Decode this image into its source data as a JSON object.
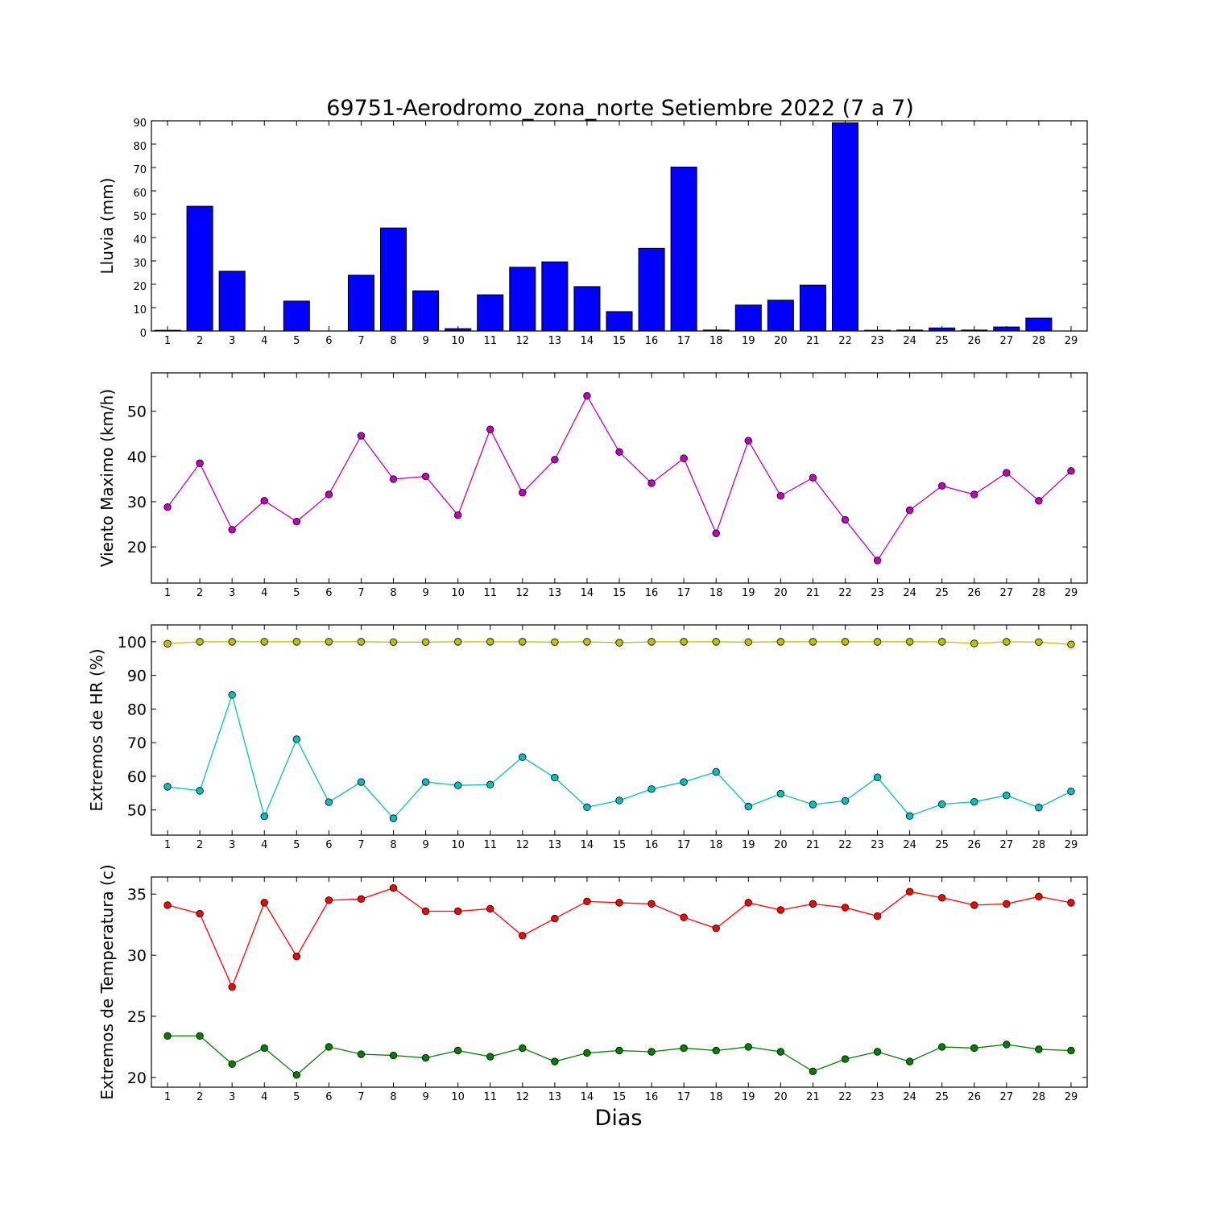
{
  "title": "69751-Aerodromo_zona_norte Setiembre 2022  (7 a 7)",
  "xlabel": "Dias",
  "colors": {
    "bar": "#0000ff",
    "wind": "#bf00bf",
    "hr_max": "#bfbf00",
    "hr_min": "#00bfbf",
    "t_max": "#ff0000",
    "t_min": "#008000"
  },
  "chart_data": [
    {
      "type": "bar",
      "ylabel": "Lluvia (mm)",
      "x": [
        1,
        2,
        3,
        4,
        5,
        6,
        7,
        8,
        9,
        10,
        11,
        12,
        13,
        14,
        15,
        16,
        17,
        18,
        19,
        20,
        21,
        22,
        23,
        24,
        25,
        26,
        27,
        28,
        29
      ],
      "xlim": [
        0.5,
        29.5
      ],
      "ylim": [
        0,
        90
      ],
      "yticks": [
        0,
        10,
        20,
        30,
        40,
        50,
        60,
        70,
        80,
        90
      ],
      "series": [
        {
          "values": [
            0.3,
            53.4,
            25.6,
            0,
            12.8,
            0,
            23.9,
            44.1,
            17.2,
            1,
            15.5,
            27.3,
            29.6,
            19,
            8.3,
            35.4,
            70.2,
            0.4,
            11.1,
            13.2,
            19.6,
            89.1,
            0.3,
            0.4,
            1.3,
            0.4,
            1.7,
            5.5,
            0
          ]
        }
      ]
    },
    {
      "type": "line",
      "ylabel": "Viento Maximo (km/h)",
      "x": [
        1,
        2,
        3,
        4,
        5,
        6,
        7,
        8,
        9,
        10,
        11,
        12,
        13,
        14,
        15,
        16,
        17,
        18,
        19,
        20,
        21,
        22,
        23,
        24,
        25,
        26,
        27,
        28,
        29
      ],
      "xlim": [
        0.5,
        29.5
      ],
      "ylim": [
        12,
        58.5
      ],
      "yticks": [
        20,
        30,
        40,
        50
      ],
      "series": [
        {
          "color_key": "wind",
          "values": [
            28.8,
            38.5,
            23.8,
            30.2,
            25.6,
            31.6,
            44.6,
            35,
            35.6,
            27,
            46,
            32,
            39.3,
            53.4,
            41,
            34.1,
            39.6,
            23,
            43.5,
            31.3,
            35.3,
            26,
            17,
            28.1,
            33.5,
            31.6,
            36.4,
            30.2,
            36.8
          ]
        }
      ]
    },
    {
      "type": "line",
      "ylabel": "Extremos de HR (%)",
      "x": [
        1,
        2,
        3,
        4,
        5,
        6,
        7,
        8,
        9,
        10,
        11,
        12,
        13,
        14,
        15,
        16,
        17,
        18,
        19,
        20,
        21,
        22,
        23,
        24,
        25,
        26,
        27,
        28,
        29
      ],
      "xlim": [
        0.5,
        29.5
      ],
      "ylim": [
        42.5,
        105
      ],
      "yticks": [
        50,
        60,
        70,
        80,
        90,
        100
      ],
      "series": [
        {
          "color_key": "hr_max",
          "values": [
            99.4,
            100,
            100,
            100,
            100,
            100,
            100,
            99.9,
            99.9,
            100,
            100,
            100,
            99.9,
            100,
            99.7,
            100,
            100,
            100,
            99.9,
            100,
            100,
            100,
            100,
            100,
            100,
            99.5,
            100,
            99.9,
            99.2
          ]
        },
        {
          "color_key": "hr_min",
          "values": [
            56.9,
            55.7,
            84.2,
            48.1,
            71,
            52.3,
            58.3,
            47.5,
            58.3,
            57.3,
            57.5,
            65.7,
            59.6,
            50.8,
            52.8,
            56.2,
            58.3,
            61.3,
            51,
            54.8,
            51.6,
            52.7,
            59.7,
            48.2,
            51.7,
            52.4,
            54.3,
            50.7,
            55.5
          ]
        }
      ]
    },
    {
      "type": "line",
      "ylabel": "Extremos de Temperatura (c)",
      "x": [
        1,
        2,
        3,
        4,
        5,
        6,
        7,
        8,
        9,
        10,
        11,
        12,
        13,
        14,
        15,
        16,
        17,
        18,
        19,
        20,
        21,
        22,
        23,
        24,
        25,
        26,
        27,
        28,
        29
      ],
      "xlim": [
        0.5,
        29.5
      ],
      "ylim": [
        19.2,
        36.4
      ],
      "yticks": [
        20,
        25,
        30,
        35
      ],
      "series": [
        {
          "color_key": "t_max",
          "values": [
            34.1,
            33.4,
            27.4,
            34.3,
            29.9,
            34.5,
            34.6,
            35.5,
            33.6,
            33.6,
            33.8,
            31.6,
            33,
            34.4,
            34.3,
            34.2,
            33.1,
            32.2,
            34.3,
            33.7,
            34.2,
            33.9,
            33.2,
            35.2,
            34.7,
            34.1,
            34.2,
            34.8,
            34.3
          ]
        },
        {
          "color_key": "t_min",
          "values": [
            23.4,
            23.4,
            21.1,
            22.4,
            20.2,
            22.5,
            21.9,
            21.8,
            21.6,
            22.2,
            21.7,
            22.4,
            21.3,
            22,
            22.2,
            22.1,
            22.4,
            22.2,
            22.5,
            22.1,
            20.5,
            21.5,
            22.1,
            21.3,
            22.5,
            22.4,
            22.7,
            22.3,
            22.2
          ]
        }
      ]
    }
  ]
}
